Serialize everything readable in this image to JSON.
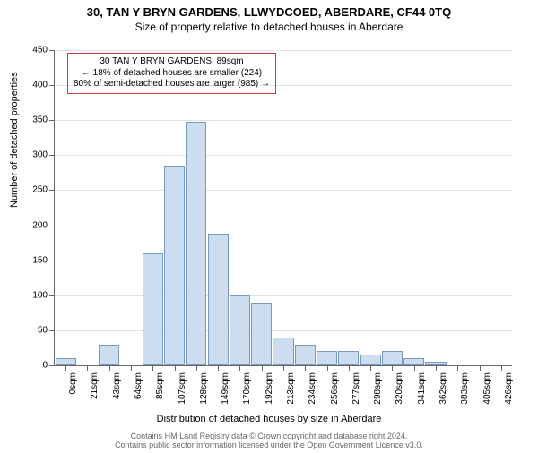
{
  "chart": {
    "type": "histogram",
    "title": "30, TAN Y BRYN GARDENS, LLWYDCOED, ABERDARE, CF44 0TQ",
    "subtitle": "Size of property relative to detached houses in Aberdare",
    "ylabel": "Number of detached properties",
    "xlabel": "Distribution of detached houses by size in Aberdare",
    "ylim_max": 450,
    "ytick_step": 50,
    "bar_color": "#ccddf0",
    "bar_border_color": "#7a9abc",
    "grid_color": "#e0e0e0",
    "axis_color": "#666666",
    "background_color": "#ffffff",
    "xtick_labels": [
      "0sqm",
      "21sqm",
      "43sqm",
      "64sqm",
      "85sqm",
      "107sqm",
      "128sqm",
      "149sqm",
      "170sqm",
      "192sqm",
      "213sqm",
      "234sqm",
      "256sqm",
      "277sqm",
      "298sqm",
      "320sqm",
      "341sqm",
      "362sqm",
      "383sqm",
      "405sqm",
      "426sqm"
    ],
    "values": [
      10,
      0,
      30,
      0,
      160,
      285,
      348,
      188,
      100,
      88,
      40,
      30,
      20,
      20,
      15,
      20,
      10,
      5,
      0,
      0,
      0
    ],
    "annotation": {
      "border_color": "#c04040",
      "line1": "30 TAN Y BRYN GARDENS: 89sqm",
      "line2": "← 18% of detached houses are smaller (224)",
      "line3": "80% of semi-detached houses are larger (985) →"
    }
  },
  "footer": {
    "line1": "Contains HM Land Registry data © Crown copyright and database right 2024.",
    "line2": "Contains public sector information licensed under the Open Government Licence v3.0."
  }
}
